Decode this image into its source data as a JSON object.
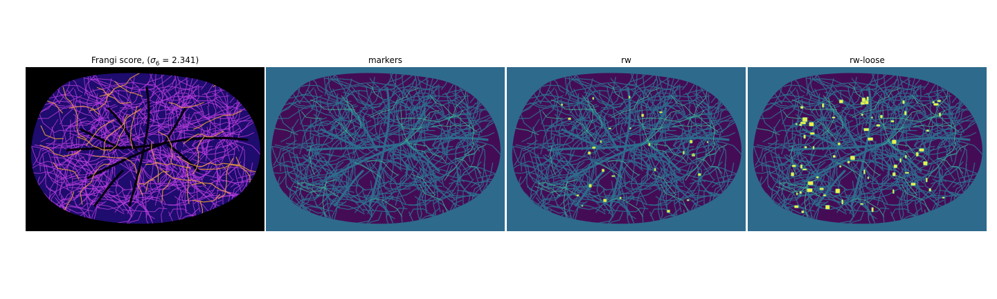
{
  "figure": {
    "panels": [
      {
        "title_prefix": "Frangi score, (",
        "title_symbol": "σ",
        "title_subscript": "6",
        "title_suffix": " = 2.341)",
        "colormap": "magma",
        "background_color": "#000000",
        "tissue_color": "#1e0c6e",
        "vessel_color": "#b93de0",
        "highlight_color": "#f0a040"
      },
      {
        "title": "markers",
        "background_color": "#2e6a8c",
        "tissue_color": "#450c56",
        "accent_color": "#3fae8f"
      },
      {
        "title": "rw",
        "background_color": "#2e6a8c",
        "tissue_color": "#450c56",
        "accent_color": "#3fae8f",
        "highlight_color": "#e8e83a"
      },
      {
        "title": "rw-loose",
        "background_color": "#2e6a8c",
        "tissue_color": "#450c56",
        "accent_color": "#3fae8f",
        "highlight_color": "#f0f04a"
      }
    ]
  }
}
